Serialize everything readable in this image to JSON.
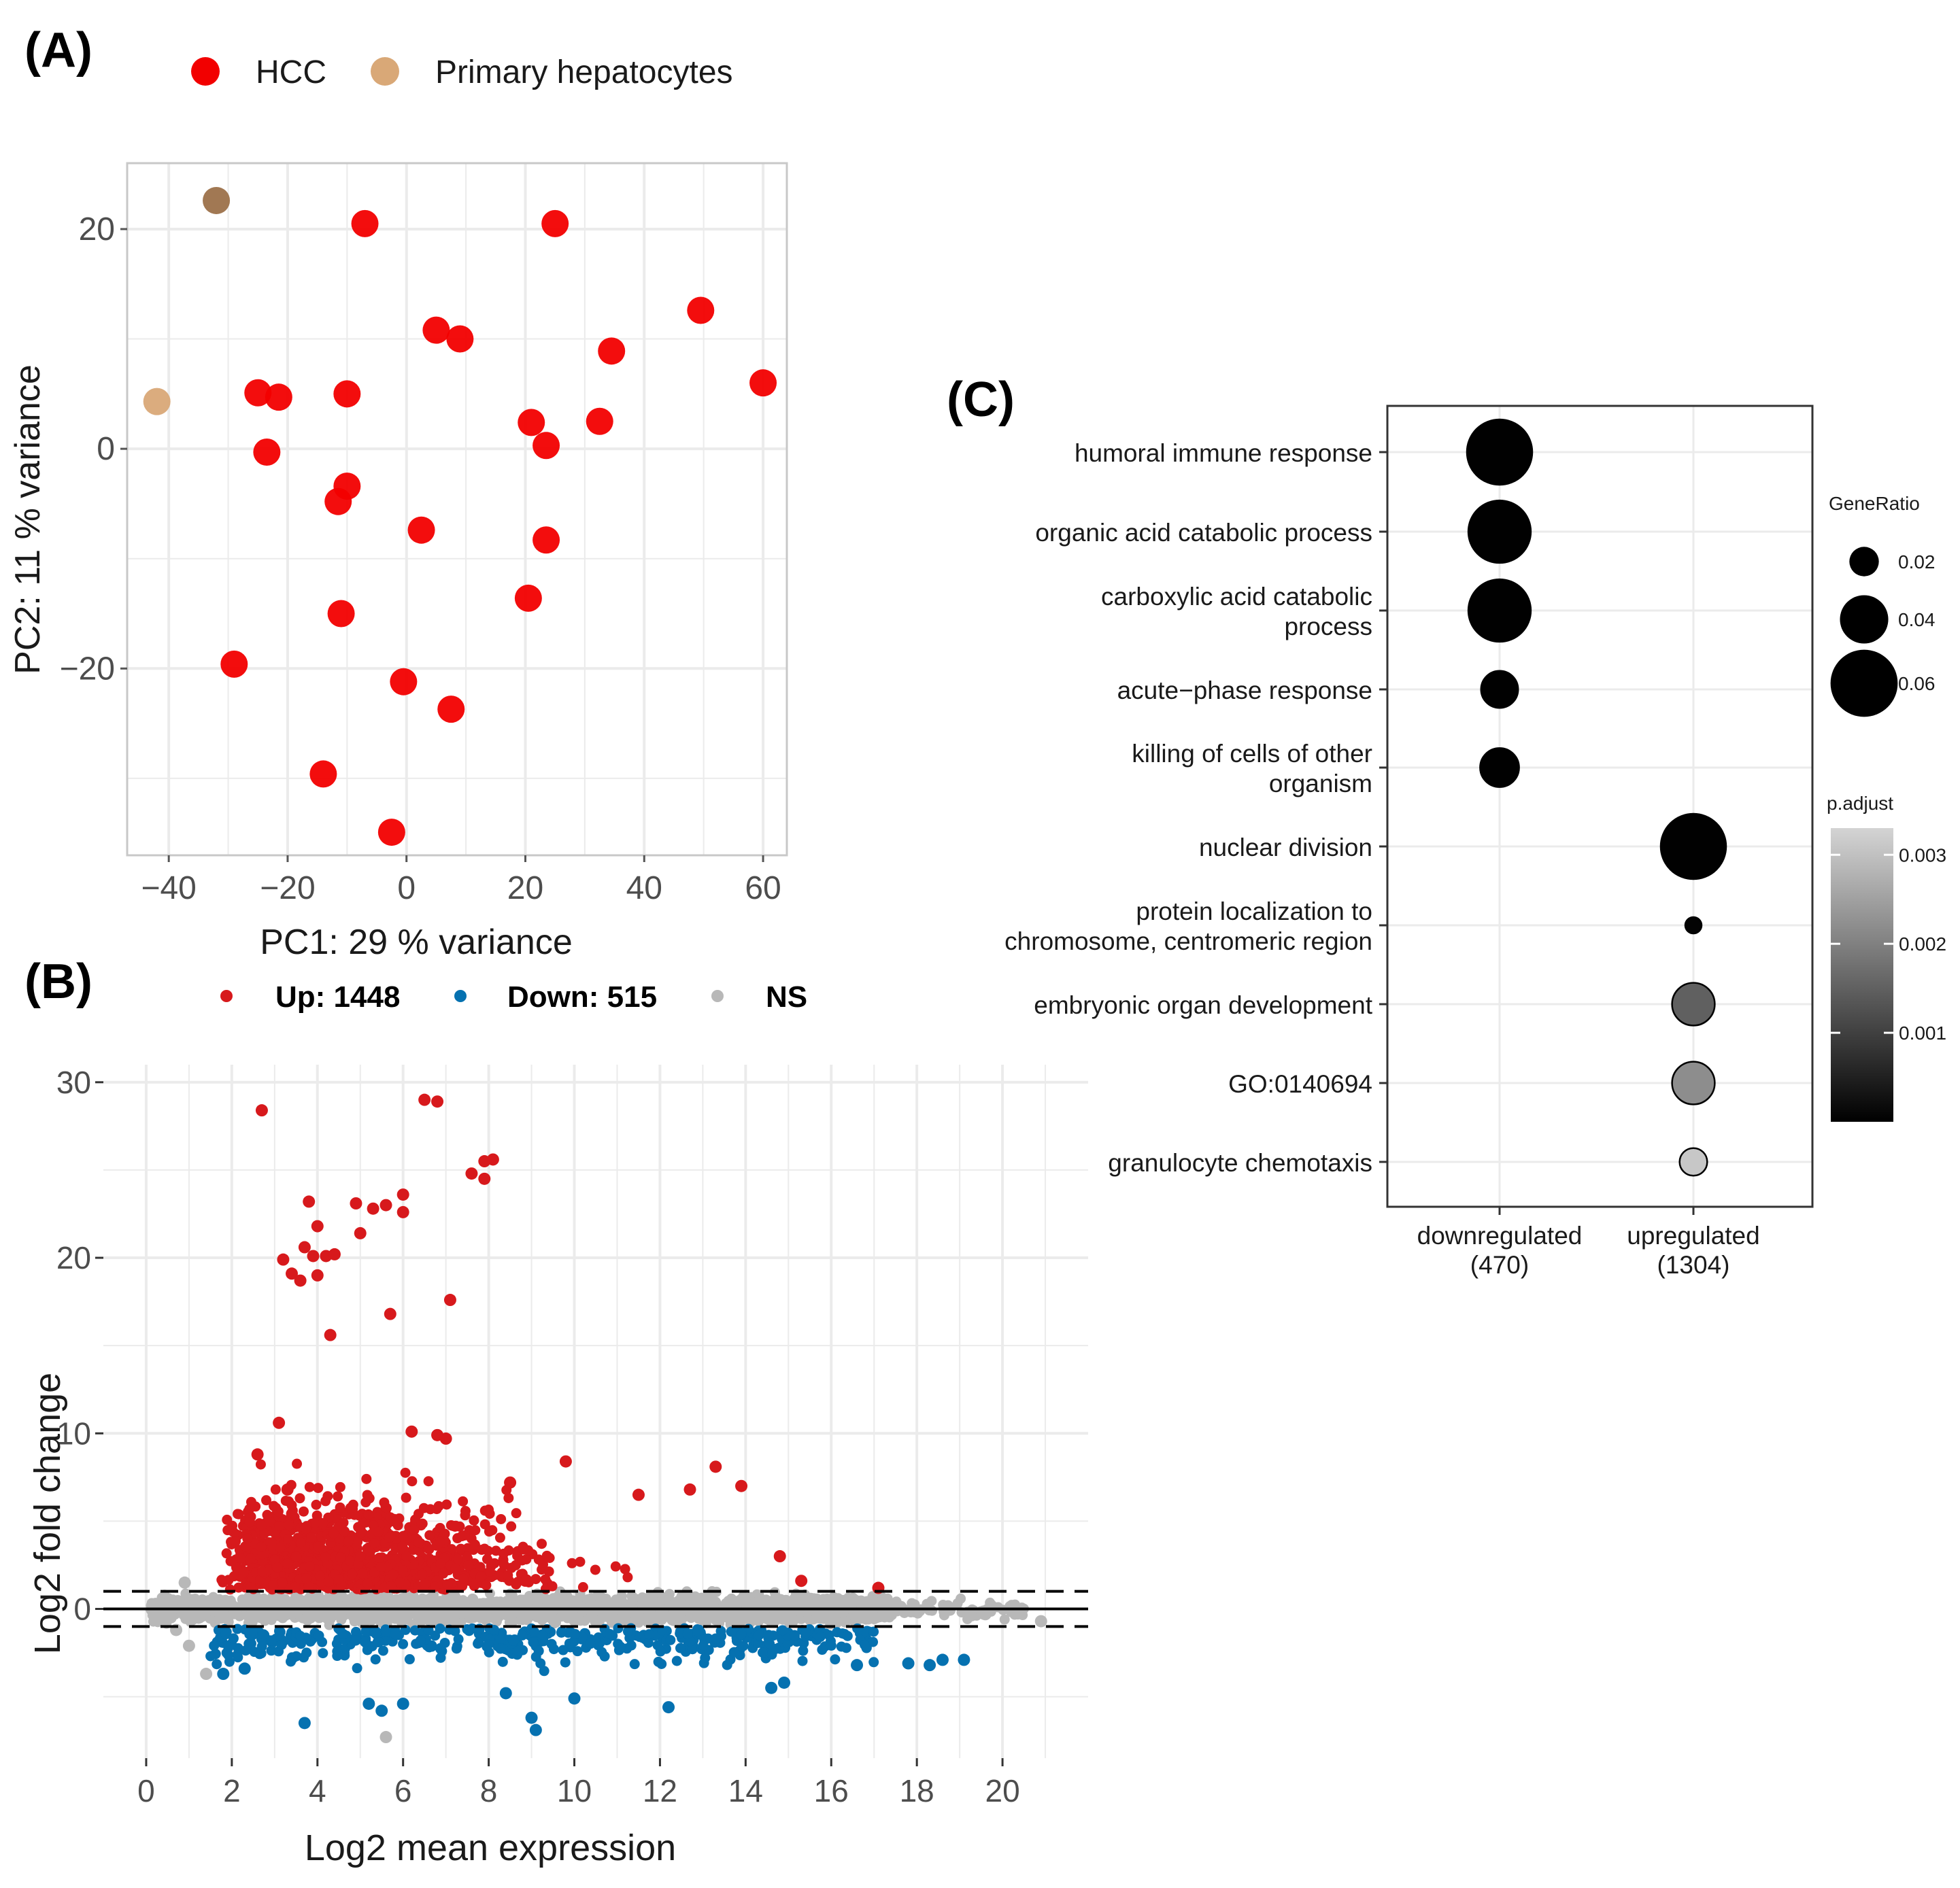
{
  "colors": {
    "hcc": "#f20000",
    "hepatocytes": "#d9a877",
    "up": "#d7191c",
    "down": "#0571b0",
    "ns": "#b8b8b8",
    "grid": "#ebebeb",
    "panel_border": "#333333",
    "text": "#1a1a1a",
    "tick_text": "#4d4d4d"
  },
  "panels": {
    "a": {
      "label": "(A)"
    },
    "b": {
      "label": "(B)"
    },
    "c": {
      "label": "(C)"
    }
  },
  "chart_data": [
    {
      "id": "pca",
      "type": "scatter",
      "xlabel": "PC1: 29 % variance",
      "ylabel": "PC2: 11 % variance",
      "xlim": [
        -47,
        64
      ],
      "ylim": [
        -37,
        26
      ],
      "xticks": [
        -40,
        -20,
        0,
        20,
        40,
        60
      ],
      "yticks": [
        -20,
        0,
        20
      ],
      "xtick_labels": [
        "−40",
        "−20",
        "0",
        "20",
        "40",
        "60"
      ],
      "ytick_labels": [
        "−20",
        "0",
        "20"
      ],
      "legend": [
        {
          "name": "HCC",
          "color_key": "hcc"
        },
        {
          "name": "Primary hepatocytes",
          "color_key": "hepatocytes"
        }
      ],
      "series": [
        {
          "name": "HCC",
          "color_key": "hcc",
          "points": [
            [
              -7,
              20.5
            ],
            [
              25,
              20.5
            ],
            [
              5,
              10.8
            ],
            [
              9,
              10
            ],
            [
              49.5,
              12.6
            ],
            [
              34.5,
              8.9
            ],
            [
              60,
              6
            ],
            [
              -25,
              5.1
            ],
            [
              -21.5,
              4.7
            ],
            [
              -10,
              5
            ],
            [
              21,
              2.4
            ],
            [
              32.5,
              2.5
            ],
            [
              23.5,
              0.3
            ],
            [
              -23.5,
              -0.3
            ],
            [
              -10,
              -3.4
            ],
            [
              -11.5,
              -4.8
            ],
            [
              2.5,
              -7.4
            ],
            [
              23.5,
              -8.3
            ],
            [
              20.5,
              -13.6
            ],
            [
              -11,
              -15
            ],
            [
              -29,
              -19.6
            ],
            [
              -0.5,
              -21.2
            ],
            [
              7.5,
              -23.7
            ],
            [
              -14,
              -29.6
            ],
            [
              -2.5,
              -34.9
            ]
          ]
        },
        {
          "name": "Primary hepatocytes",
          "color_key": "hepatocytes",
          "points": [
            [
              -32,
              22.6
            ],
            [
              -42,
              4.3
            ]
          ]
        }
      ]
    },
    {
      "id": "ma",
      "type": "scatter",
      "xlabel": "Log2 mean expression",
      "ylabel": "Log2 fold change",
      "xlim": [
        -1,
        22
      ],
      "ylim": [
        -8.5,
        31
      ],
      "xticks": [
        0,
        2,
        4,
        6,
        8,
        10,
        12,
        14,
        16,
        18,
        20
      ],
      "yticks": [
        0,
        10,
        20,
        30
      ],
      "threshold_lines": [
        1,
        -1
      ],
      "legend": [
        {
          "name": "Up: 1448",
          "color_key": "up"
        },
        {
          "name": "Down: 515",
          "color_key": "down"
        },
        {
          "name": "NS",
          "color_key": "ns"
        }
      ],
      "counts": {
        "up": 1448,
        "down": 515
      },
      "highlighted_points": {
        "up": [
          [
            2.7,
            28.4
          ],
          [
            6.5,
            29
          ],
          [
            6.8,
            28.9
          ],
          [
            7.6,
            24.8
          ],
          [
            7.9,
            25.5
          ],
          [
            8.1,
            25.6
          ],
          [
            7.9,
            24.5
          ],
          [
            3.8,
            23.2
          ],
          [
            4.9,
            23.1
          ],
          [
            5.3,
            22.8
          ],
          [
            5.6,
            23
          ],
          [
            6,
            23.6
          ],
          [
            6,
            22.6
          ],
          [
            5,
            21.4
          ],
          [
            4,
            21.8
          ],
          [
            3.7,
            20.6
          ],
          [
            3.9,
            20.1
          ],
          [
            4.2,
            20.1
          ],
          [
            4.4,
            20.2
          ],
          [
            3.2,
            19.9
          ],
          [
            3.4,
            19.1
          ],
          [
            3.6,
            18.7
          ],
          [
            4,
            19
          ],
          [
            5.7,
            16.8
          ],
          [
            7.1,
            17.6
          ],
          [
            4.3,
            15.6
          ],
          [
            3.1,
            10.6
          ],
          [
            6.2,
            10.1
          ],
          [
            6.8,
            9.9
          ],
          [
            7,
            9.7
          ],
          [
            2.6,
            8.8
          ],
          [
            9.8,
            8.4
          ],
          [
            13.3,
            8.1
          ],
          [
            13.9,
            7
          ],
          [
            12.7,
            6.8
          ],
          [
            3.3,
            6.8
          ],
          [
            8.5,
            7.2
          ],
          [
            11.5,
            6.5
          ],
          [
            14.8,
            3
          ],
          [
            15.3,
            1.6
          ],
          [
            17.1,
            1.2
          ]
        ],
        "down": [
          [
            3.7,
            -6.5
          ],
          [
            5.2,
            -5.4
          ],
          [
            5.5,
            -5.8
          ],
          [
            9,
            -6.2
          ],
          [
            9.1,
            -6.9
          ],
          [
            6,
            -5.4
          ],
          [
            12.2,
            -5.6
          ],
          [
            10,
            -5.1
          ],
          [
            14.6,
            -4.5
          ],
          [
            14.9,
            -4.2
          ],
          [
            16.6,
            -3.2
          ],
          [
            17.8,
            -3.1
          ],
          [
            18.3,
            -3.2
          ],
          [
            18.6,
            -2.9
          ],
          [
            19.1,
            -2.9
          ],
          [
            2.3,
            -3.4
          ],
          [
            1.8,
            -3.7
          ],
          [
            8.4,
            -4.8
          ]
        ],
        "ns": [
          [
            5.6,
            -7.3
          ],
          [
            20.9,
            -0.7
          ],
          [
            19.6,
            -0.3
          ],
          [
            1.4,
            -3.7
          ],
          [
            1,
            -2.1
          ],
          [
            0.7,
            -1.2
          ],
          [
            0.9,
            1.5
          ]
        ]
      }
    },
    {
      "id": "go",
      "type": "scatter",
      "categories": [
        "downregulated\n(470)",
        "upregulated\n(1304)"
      ],
      "terms": [
        "humoral immune response",
        "organic acid catabolic process",
        "carboxylic acid catabolic\nprocess",
        "acute−phase response",
        "killing of cells of other\norganism",
        "nuclear division",
        "protein localization to\nchromosome, centromeric region",
        "embryonic organ development",
        "GO:0140694",
        "granulocyte chemotaxis"
      ],
      "points": [
        {
          "term_index": 0,
          "category_index": 0,
          "gene_ratio": 0.064,
          "p_adjust": 1e-05
        },
        {
          "term_index": 1,
          "category_index": 0,
          "gene_ratio": 0.061,
          "p_adjust": 1e-05
        },
        {
          "term_index": 2,
          "category_index": 0,
          "gene_ratio": 0.061,
          "p_adjust": 1e-05
        },
        {
          "term_index": 3,
          "category_index": 0,
          "gene_ratio": 0.034,
          "p_adjust": 2e-05
        },
        {
          "term_index": 4,
          "category_index": 0,
          "gene_ratio": 0.036,
          "p_adjust": 2e-05
        },
        {
          "term_index": 5,
          "category_index": 1,
          "gene_ratio": 0.064,
          "p_adjust": 1e-05
        },
        {
          "term_index": 6,
          "category_index": 1,
          "gene_ratio": 0.012,
          "p_adjust": 5e-05
        },
        {
          "term_index": 7,
          "category_index": 1,
          "gene_ratio": 0.04,
          "p_adjust": 0.0015
        },
        {
          "term_index": 8,
          "category_index": 1,
          "gene_ratio": 0.04,
          "p_adjust": 0.0022
        },
        {
          "term_index": 9,
          "category_index": 1,
          "gene_ratio": 0.024,
          "p_adjust": 0.0031
        }
      ],
      "size_legend": {
        "title": "GeneRatio",
        "values": [
          0.02,
          0.04,
          0.06
        ]
      },
      "color_legend": {
        "title": "p.adjust",
        "ticks": [
          0.003,
          0.002,
          0.001
        ],
        "tick_labels": [
          "0.003",
          "0.002",
          "0.001"
        ],
        "range": [
          0,
          0.0033
        ]
      }
    }
  ]
}
